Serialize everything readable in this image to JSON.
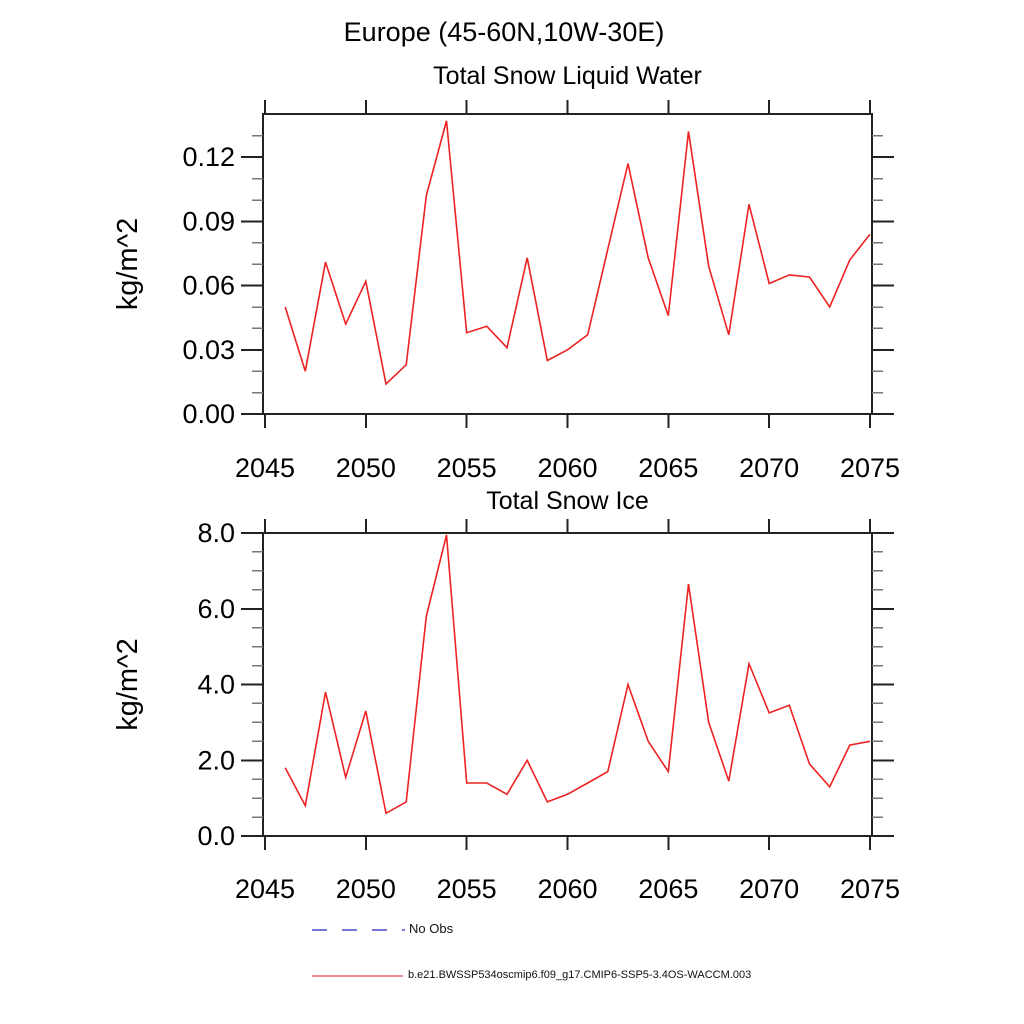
{
  "title": "Europe (45-60N,10W-30E)",
  "chart_data": [
    {
      "type": "line",
      "title": "Total Snow Liquid Water",
      "ylabel": "kg/m^2",
      "xlabel": "",
      "xlim": [
        2045,
        2075
      ],
      "ylim": [
        0,
        0.14
      ],
      "grid": false,
      "x_major_ticks": [
        2045,
        2050,
        2055,
        2060,
        2065,
        2070,
        2075
      ],
      "x_major_labels": [
        "2045",
        "2050",
        "2055",
        "2060",
        "2065",
        "2070",
        "2075"
      ],
      "y_major_ticks": [
        0.0,
        0.03,
        0.06,
        0.09,
        0.12
      ],
      "y_major_labels": [
        "0.00",
        "0.03",
        "0.06",
        "0.09",
        "0.12"
      ],
      "y_minor_step": 0.01,
      "x": [
        2046,
        2047,
        2048,
        2049,
        2050,
        2051,
        2052,
        2053,
        2054,
        2055,
        2056,
        2057,
        2058,
        2059,
        2060,
        2061,
        2062,
        2063,
        2064,
        2065,
        2066,
        2067,
        2068,
        2069,
        2070,
        2071,
        2072,
        2073,
        2074,
        2075
      ],
      "series": [
        {
          "name": "b.e21.BWSSP534oscmip6.f09_g17.CMIP6-SSP5-3.4OS-WACCM.003",
          "color": "#ee2222",
          "values": [
            0.05,
            0.02,
            0.071,
            0.042,
            0.062,
            0.014,
            0.023,
            0.102,
            0.137,
            0.038,
            0.041,
            0.031,
            0.073,
            0.025,
            0.03,
            0.037,
            0.077,
            0.117,
            0.073,
            0.046,
            0.132,
            0.069,
            0.037,
            0.098,
            0.061,
            0.065,
            0.064,
            0.05,
            0.072,
            0.084
          ]
        }
      ],
      "legend_position": "none"
    },
    {
      "type": "line",
      "title": "Total Snow Ice",
      "ylabel": "kg/m^2",
      "xlabel": "",
      "xlim": [
        2045,
        2075
      ],
      "ylim": [
        0,
        8.0
      ],
      "grid": false,
      "x_major_ticks": [
        2045,
        2050,
        2055,
        2060,
        2065,
        2070,
        2075
      ],
      "x_major_labels": [
        "2045",
        "2050",
        "2055",
        "2060",
        "2065",
        "2070",
        "2075"
      ],
      "y_major_ticks": [
        0.0,
        2.0,
        4.0,
        6.0,
        8.0
      ],
      "y_major_labels": [
        "0.0",
        "2.0",
        "4.0",
        "6.0",
        "8.0"
      ],
      "y_minor_step": 0.5,
      "x": [
        2046,
        2047,
        2048,
        2049,
        2050,
        2051,
        2052,
        2053,
        2054,
        2055,
        2056,
        2057,
        2058,
        2059,
        2060,
        2061,
        2062,
        2063,
        2064,
        2065,
        2066,
        2067,
        2068,
        2069,
        2070,
        2071,
        2072,
        2073,
        2074,
        2075
      ],
      "series": [
        {
          "name": "b.e21.BWSSP534oscmip6.f09_g17.CMIP6-SSP5-3.4OS-WACCM.003",
          "color": "#ee2222",
          "values": [
            1.8,
            0.8,
            3.8,
            1.55,
            3.3,
            0.6,
            0.9,
            5.8,
            7.95,
            1.4,
            1.4,
            1.1,
            2.0,
            0.9,
            1.1,
            1.4,
            1.7,
            4.0,
            2.5,
            1.7,
            6.65,
            3.0,
            1.45,
            4.55,
            3.25,
            3.45,
            1.9,
            1.3,
            2.4,
            2.5
          ]
        }
      ],
      "legend_position": "below"
    }
  ],
  "legend": {
    "items": [
      {
        "label": "No Obs",
        "color": "#4a4acd",
        "style": "dashed"
      },
      {
        "label": "b.e21.BWSSP534oscmip6.f09_g17.CMIP6-SSP5-3.4OS-WACCM.003",
        "color": "#ee4444",
        "style": "solid"
      }
    ]
  },
  "colors": {
    "series_red": "#ee2222",
    "no_obs_blue": "#4a4acd",
    "axis": "#222222"
  }
}
